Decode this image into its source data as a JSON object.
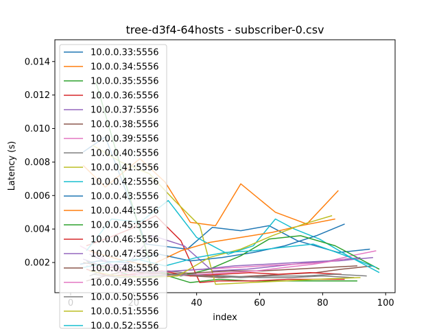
{
  "chart_data": {
    "type": "line",
    "title": "tree-d3f4-64hosts - subscriber-0.csv",
    "xlabel": "index",
    "ylabel": "Latency (s)",
    "xlim": [
      -5,
      103
    ],
    "ylim": [
      0.0002,
      0.0153
    ],
    "xticks": [
      0,
      20,
      40,
      60,
      80,
      100
    ],
    "xtick_labels": [
      "0",
      "20",
      "40",
      "60",
      "80",
      "100"
    ],
    "yticks": [
      0.002,
      0.004,
      0.006,
      0.008,
      0.01,
      0.012,
      0.014
    ],
    "ytick_labels": [
      "0.002",
      "0.004",
      "0.006",
      "0.008",
      "0.010",
      "0.012",
      "0.014"
    ],
    "grid": false,
    "legend": "upper-left",
    "series": [
      {
        "name": "10.0.0.33:5556",
        "color": "#1f77b4",
        "x": [
          4,
          11,
          24,
          37,
          45,
          54,
          63,
          72,
          85,
          95
        ],
        "y": [
          0.0086,
          0.0095,
          0.0031,
          0.0028,
          0.0041,
          0.0039,
          0.0042,
          0.0033,
          0.0026,
          0.0028
        ]
      },
      {
        "name": "10.0.0.34:5556",
        "color": "#ff7f0e",
        "x": [
          4,
          11,
          22,
          30,
          38,
          46,
          54,
          65,
          75,
          85
        ],
        "y": [
          0.0078,
          0.0065,
          0.0082,
          0.0068,
          0.0044,
          0.0042,
          0.0067,
          0.005,
          0.0043,
          0.0063
        ]
      },
      {
        "name": "10.0.0.35:5556",
        "color": "#2ca02c",
        "x": [
          5,
          12,
          22,
          31,
          38,
          47,
          57,
          68,
          79,
          91
        ],
        "y": [
          0.0021,
          0.0016,
          0.0011,
          0.0012,
          0.0008,
          0.001,
          0.0009,
          0.0009,
          0.0009,
          0.0009
        ]
      },
      {
        "name": "10.0.0.36:5556",
        "color": "#d62728",
        "x": [
          5,
          11,
          19,
          27,
          35,
          41,
          47,
          58,
          69,
          87
        ],
        "y": [
          0.003,
          0.0034,
          0.004,
          0.0048,
          0.0033,
          0.0008,
          0.0009,
          0.0009,
          0.001,
          0.001
        ]
      },
      {
        "name": "10.0.0.37:5556",
        "color": "#9467bd",
        "x": [
          4,
          10,
          18,
          26,
          36,
          45,
          56,
          66,
          76,
          85,
          96
        ],
        "y": [
          0.0022,
          0.0018,
          0.0019,
          0.0036,
          0.003,
          0.0015,
          0.0016,
          0.0018,
          0.002,
          0.0021,
          0.0023
        ]
      },
      {
        "name": "10.0.0.38:5556",
        "color": "#8c564b",
        "x": [
          5,
          13,
          21,
          30,
          39,
          48,
          58,
          68,
          78,
          86,
          96
        ],
        "y": [
          0.0009,
          0.0013,
          0.0016,
          0.0013,
          0.0012,
          0.0011,
          0.0012,
          0.0013,
          0.0014,
          0.0016,
          0.0018
        ]
      },
      {
        "name": "10.0.0.39:5556",
        "color": "#e377c2",
        "x": [
          3,
          10,
          17,
          25,
          34,
          43,
          52,
          61,
          71,
          80,
          89,
          97
        ],
        "y": [
          0.003,
          0.0023,
          0.0012,
          0.0013,
          0.0015,
          0.0016,
          0.0017,
          0.0018,
          0.0019,
          0.002,
          0.0024,
          0.0027
        ]
      },
      {
        "name": "10.0.0.40:5556",
        "color": "#7f7f7f",
        "x": [
          6,
          14,
          23,
          31,
          40,
          50,
          60,
          70,
          80,
          90
        ],
        "y": [
          0.0012,
          0.0018,
          0.0014,
          0.0015,
          0.0013,
          0.0012,
          0.0011,
          0.0011,
          0.0012,
          0.0011
        ]
      },
      {
        "name": "10.0.0.41:5556",
        "color": "#bcbd22",
        "x": [
          7,
          16,
          25,
          33,
          41,
          46,
          57,
          68,
          78,
          92
        ],
        "y": [
          0.009,
          0.008,
          0.0073,
          0.0057,
          0.0042,
          0.0007,
          0.0008,
          0.0009,
          0.001,
          0.0011
        ]
      },
      {
        "name": "10.0.0.42:5556",
        "color": "#17becf",
        "x": [
          5,
          13,
          22,
          31,
          40,
          50,
          58,
          65,
          71,
          79,
          88,
          98
        ],
        "y": [
          0.0027,
          0.0046,
          0.0044,
          0.0057,
          0.0035,
          0.0025,
          0.003,
          0.0046,
          0.004,
          0.0034,
          0.0024,
          0.0014
        ]
      },
      {
        "name": "10.0.0.43:5556",
        "color": "#1f77b4",
        "x": [
          3,
          9,
          18,
          28,
          38,
          48,
          58,
          68,
          78,
          87
        ],
        "y": [
          0.0019,
          0.0021,
          0.002,
          0.0025,
          0.0021,
          0.0023,
          0.0026,
          0.003,
          0.0036,
          0.0043
        ]
      },
      {
        "name": "10.0.0.44:5556",
        "color": "#ff7f0e",
        "x": [
          6,
          15,
          25,
          35,
          44,
          54,
          64,
          73,
          84
        ],
        "y": [
          0.0027,
          0.0022,
          0.0018,
          0.0027,
          0.0032,
          0.0035,
          0.0038,
          0.0042,
          0.0046
        ]
      },
      {
        "name": "10.0.0.45:5556",
        "color": "#2ca02c",
        "x": [
          8,
          17,
          26,
          35,
          44,
          54,
          63,
          73,
          84,
          98
        ],
        "y": [
          0.0128,
          0.007,
          0.0015,
          0.0012,
          0.0016,
          0.0024,
          0.0034,
          0.0036,
          0.003,
          0.0016
        ]
      },
      {
        "name": "10.0.0.46:5556",
        "color": "#d62728",
        "x": [
          5,
          12,
          20,
          29,
          38,
          48,
          57,
          66,
          76,
          86
        ],
        "y": [
          0.0016,
          0.0012,
          0.0013,
          0.0015,
          0.0012,
          0.0013,
          0.0014,
          0.0013,
          0.0014,
          0.0013
        ]
      },
      {
        "name": "10.0.0.47:5556",
        "color": "#9467bd",
        "x": [
          6,
          15,
          24,
          33,
          42,
          52,
          62,
          72,
          82,
          92
        ],
        "y": [
          0.0025,
          0.0017,
          0.0014,
          0.0015,
          0.0016,
          0.0018,
          0.0019,
          0.002,
          0.0021,
          0.0023
        ]
      },
      {
        "name": "10.0.0.48:5556",
        "color": "#8c564b",
        "x": [
          4,
          13,
          22,
          31,
          41,
          51,
          61,
          71,
          81,
          91
        ],
        "y": [
          0.002,
          0.0017,
          0.0014,
          0.0013,
          0.0014,
          0.0015,
          0.0015,
          0.0016,
          0.0017,
          0.0018
        ]
      },
      {
        "name": "10.0.0.49:5556",
        "color": "#e377c2",
        "x": [
          5,
          14,
          23,
          32,
          41,
          50,
          59,
          68,
          77,
          87
        ],
        "y": [
          0.0018,
          0.0015,
          0.0013,
          0.0012,
          0.0013,
          0.0014,
          0.0015,
          0.0017,
          0.0019,
          0.0022
        ]
      },
      {
        "name": "10.0.0.50:5556",
        "color": "#7f7f7f",
        "x": [
          7,
          16,
          25,
          34,
          44,
          54,
          64,
          74,
          84,
          94
        ],
        "y": [
          0.0013,
          0.0011,
          0.0012,
          0.0013,
          0.0012,
          0.0011,
          0.0012,
          0.0012,
          0.0013,
          0.0012
        ]
      },
      {
        "name": "10.0.0.51:5556",
        "color": "#bcbd22",
        "x": [
          6,
          15,
          24,
          34,
          44,
          54,
          64,
          74,
          83
        ],
        "y": [
          0.0015,
          0.0012,
          0.0011,
          0.0012,
          0.0023,
          0.0028,
          0.0036,
          0.0043,
          0.0048
        ]
      },
      {
        "name": "10.0.0.52:5556",
        "color": "#17becf",
        "x": [
          4,
          12,
          21,
          30,
          40,
          49,
          58,
          67,
          77,
          86,
          97
        ],
        "y": [
          0.0017,
          0.002,
          0.0022,
          0.0018,
          0.0023,
          0.0026,
          0.0027,
          0.0029,
          0.0031,
          0.0025,
          0.0017
        ]
      }
    ]
  }
}
